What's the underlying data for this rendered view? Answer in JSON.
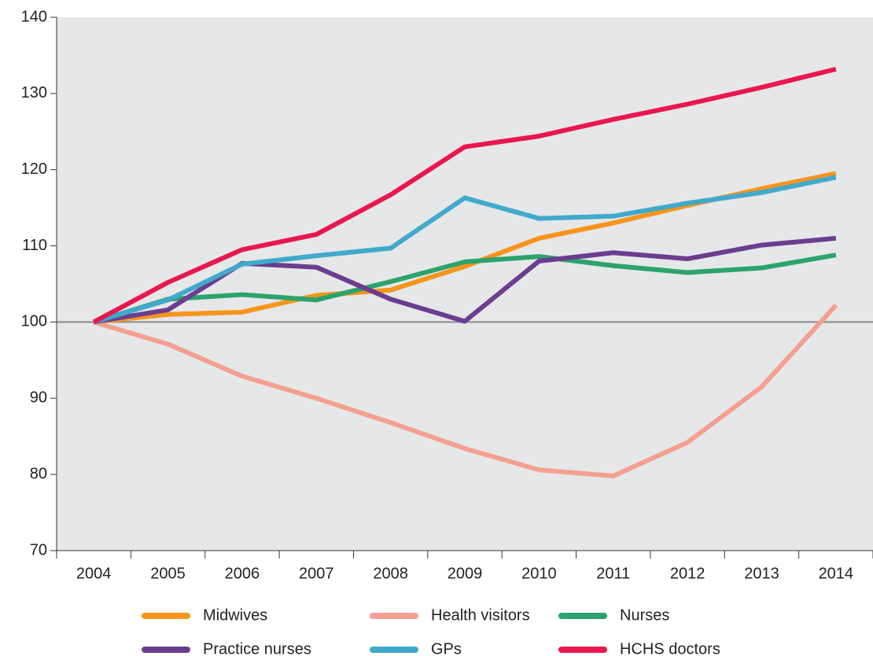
{
  "chart_data": {
    "type": "line",
    "categories": [
      "2004",
      "2005",
      "2006",
      "2007",
      "2008",
      "2009",
      "2010",
      "2011",
      "2012",
      "2013",
      "2014"
    ],
    "series": [
      {
        "name": "Midwives",
        "color": "#f7941d",
        "values": [
          100,
          101,
          101.3,
          103.5,
          104.2,
          107.3,
          111,
          113,
          115.3,
          117.5,
          119.5
        ]
      },
      {
        "name": "Health visitors",
        "color": "#f4a090",
        "values": [
          100,
          97.1,
          92.9,
          90,
          86.8,
          83.4,
          80.6,
          79.8,
          84.2,
          91.5,
          102.2
        ]
      },
      {
        "name": "Nurses",
        "color": "#2ba36b",
        "values": [
          100,
          103,
          103.6,
          102.9,
          105.3,
          107.9,
          108.6,
          107.4,
          106.5,
          107.1,
          108.8
        ]
      },
      {
        "name": "Practice nurses",
        "color": "#6b3d8f",
        "values": [
          100,
          101.6,
          107.7,
          107.2,
          103,
          100.1,
          108,
          109.1,
          108.3,
          110.1,
          111
        ]
      },
      {
        "name": "GPs",
        "color": "#41a9cc",
        "values": [
          100,
          102.9,
          107.6,
          108.7,
          109.7,
          116.3,
          113.6,
          113.9,
          115.6,
          117,
          119
        ]
      },
      {
        "name": "HCHS doctors",
        "color": "#e8184e",
        "values": [
          100,
          105.2,
          109.5,
          111.5,
          116.7,
          123,
          124.4,
          126.6,
          128.6,
          130.8,
          133.2
        ]
      }
    ],
    "ylim": [
      70,
      140
    ],
    "yticks": [
      70,
      80,
      90,
      100,
      110,
      120,
      130,
      140
    ],
    "reference_line": 100,
    "legend": "bottom",
    "background": "#e6e7e8"
  }
}
